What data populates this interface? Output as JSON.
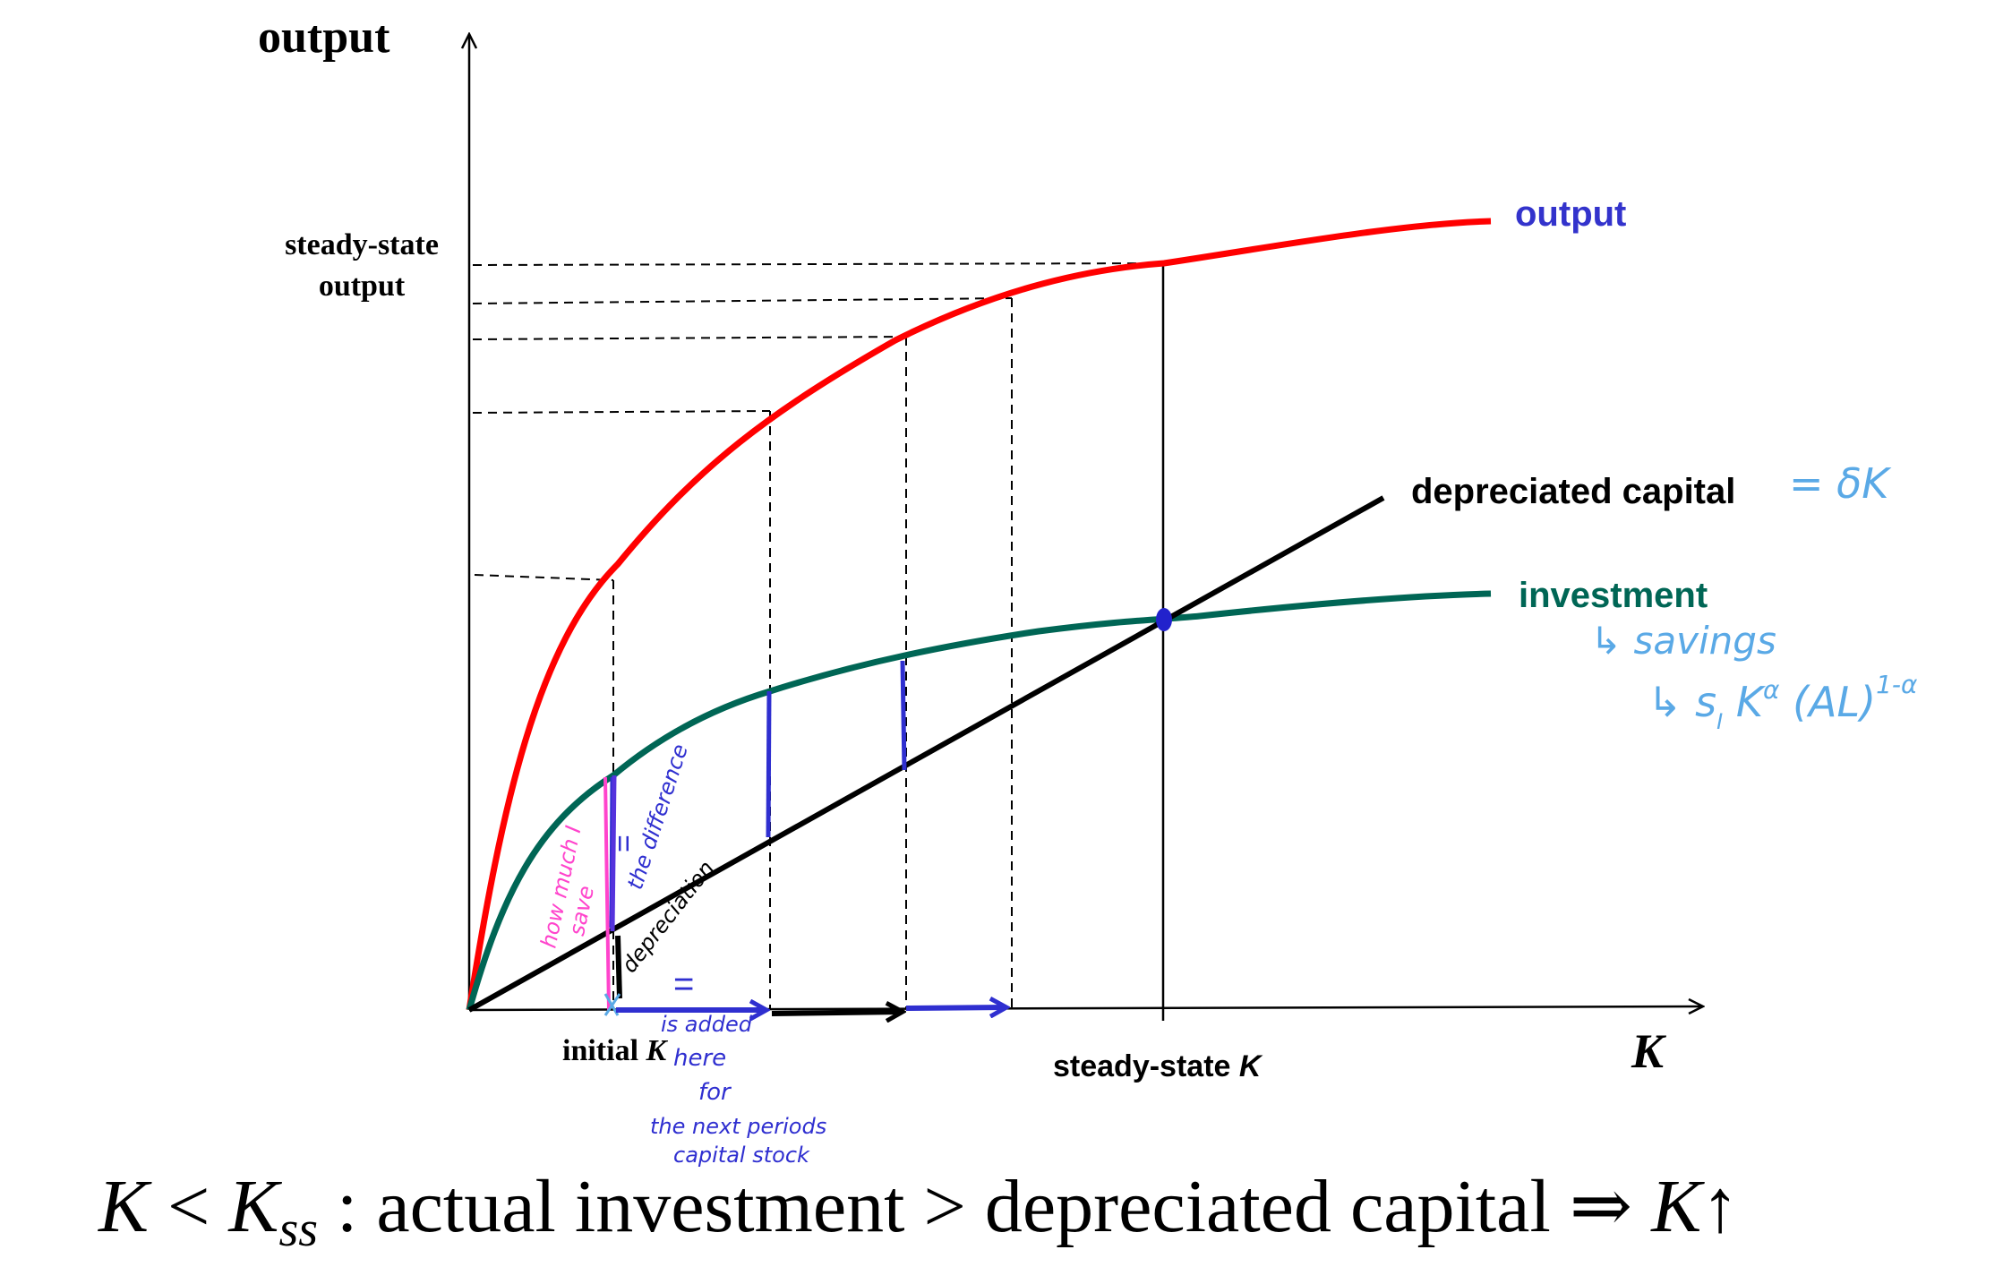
{
  "axes": {
    "y_label": "output",
    "x_label": "K"
  },
  "labels": {
    "steady_state_output_line1": "steady-state",
    "steady_state_output_line2": "output",
    "initial_k_prefix": "initial ",
    "initial_k_var": "K",
    "steady_state_k_prefix": "steady-state ",
    "steady_state_k_var": "K"
  },
  "curves": {
    "output": {
      "label": "output",
      "color": "#ff0000",
      "label_color": "#3333cc"
    },
    "investment": {
      "label": "investment",
      "color": "#006655",
      "label_color": "#006655"
    },
    "depreciated_capital": {
      "label": "depreciated capital",
      "color": "#000000",
      "label_color": "#000000"
    }
  },
  "annotations": {
    "delta_k": "= δK",
    "savings_line1": "↳ savings",
    "savings_line2": "↳ s",
    "savings_sub": "I",
    "savings_rest": " K",
    "savings_sup_alpha": "α",
    "savings_paren": " (AL)",
    "savings_sup": "1-α",
    "how_much_save_1": "how much I",
    "how_much_save_2": "save",
    "the_difference": "the difference",
    "equals_sign": "=",
    "depreciation": "depreciation",
    "is_added": "is added",
    "here": "here",
    "for": "for",
    "next_periods": "the next periods",
    "capital_stock": "capital stock"
  },
  "caption": {
    "k": "K",
    "lt": " < ",
    "kss": "K",
    "ss_sub": "ss",
    "text": " : actual investment > depreciated capital ⇒ ",
    "k2": "K",
    "arrow": "↑"
  },
  "colors": {
    "pen_blue": "#2f2fd0",
    "pen_pink": "#ff44cc",
    "pen_lightblue": "#5aa9e6",
    "point": "#2222cc"
  }
}
